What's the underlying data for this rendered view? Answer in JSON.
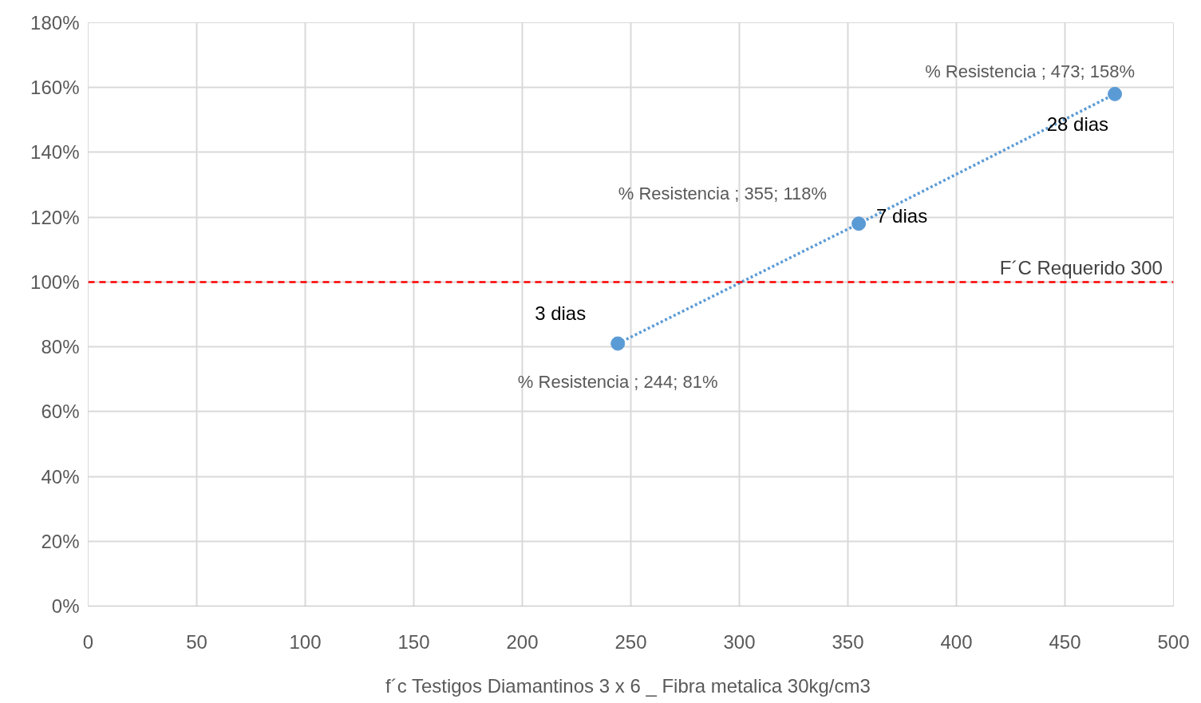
{
  "chart_data": {
    "type": "line",
    "xlabel": "f´c Testigos Diamantinos  3 x 6 _ Fibra metalica 30kg/cm3",
    "x": [
      244,
      355,
      473
    ],
    "series": [
      {
        "color": "#5b9bd5",
        "values": [
          81,
          118,
          158
        ],
        "value_labels": [
          "% Resistencia ; 244; 81%",
          "% Resistencia ; 355; 118%",
          "% Resistencia ; 473; 158%"
        ]
      }
    ],
    "marker": "circle",
    "line_style": "dotted",
    "xlim": [
      0,
      500
    ],
    "xticks": [
      0,
      50,
      100,
      150,
      200,
      250,
      300,
      350,
      400,
      450,
      500
    ],
    "ylim": [
      0,
      180
    ],
    "yticks": [
      {
        "value": 0,
        "label": "0%"
      },
      {
        "value": 20,
        "label": "20%"
      },
      {
        "value": 40,
        "label": "40%"
      },
      {
        "value": 60,
        "label": "60%"
      },
      {
        "value": 80,
        "label": "80%"
      },
      {
        "value": 100,
        "label": "100%"
      },
      {
        "value": 120,
        "label": "120%"
      },
      {
        "value": 140,
        "label": "140%"
      },
      {
        "value": 160,
        "label": "160%"
      },
      {
        "value": 180,
        "label": "180%"
      }
    ],
    "ref_lines": [
      {
        "axis": "y",
        "value": 100,
        "label": "F´C Requerido 300",
        "color": "#ff0000",
        "line_style": "dashed"
      }
    ],
    "annotations": [
      {
        "text": "3 dias",
        "x": 244,
        "y": 81
      },
      {
        "text": "7 dias",
        "x": 355,
        "y": 118
      },
      {
        "text": "28 dias",
        "x": 473,
        "y": 158
      }
    ],
    "grid": true
  }
}
